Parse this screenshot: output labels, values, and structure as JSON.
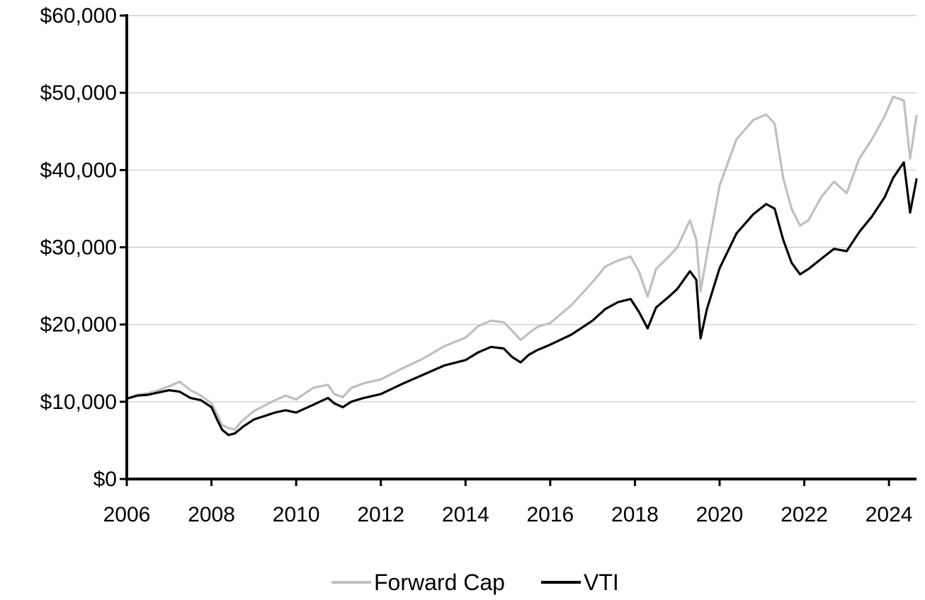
{
  "chart_data": {
    "type": "line",
    "title": "",
    "xlabel": "",
    "ylabel": "",
    "xlim": [
      2006,
      2024.65
    ],
    "ylim": [
      0,
      60000
    ],
    "x_ticks": [
      2006,
      2008,
      2010,
      2012,
      2014,
      2016,
      2018,
      2020,
      2022,
      2024
    ],
    "x_tick_labels": [
      "2006",
      "2008",
      "2010",
      "2012",
      "2014",
      "2016",
      "2018",
      "2020",
      "2022",
      "2024"
    ],
    "y_ticks": [
      0,
      10000,
      20000,
      30000,
      40000,
      50000,
      60000
    ],
    "y_tick_labels": [
      "$0",
      "$10,000",
      "$20,000",
      "$30,000",
      "$40,000",
      "$50,000",
      "$60,000"
    ],
    "grid": "horizontal",
    "legend_position": "bottom-center",
    "series": [
      {
        "name": "Forward Cap",
        "color": "#bfbfbf",
        "points": [
          [
            2006.0,
            10400
          ],
          [
            2006.25,
            10900
          ],
          [
            2006.5,
            11100
          ],
          [
            2006.75,
            11500
          ],
          [
            2007.0,
            12000
          ],
          [
            2007.25,
            12600
          ],
          [
            2007.5,
            11500
          ],
          [
            2007.75,
            10800
          ],
          [
            2008.0,
            9800
          ],
          [
            2008.15,
            8200
          ],
          [
            2008.25,
            7000
          ],
          [
            2008.4,
            6600
          ],
          [
            2008.55,
            6400
          ],
          [
            2008.7,
            7400
          ],
          [
            2009.0,
            8800
          ],
          [
            2009.5,
            10200
          ],
          [
            2009.75,
            10800
          ],
          [
            2010.0,
            10300
          ],
          [
            2010.4,
            11800
          ],
          [
            2010.75,
            12200
          ],
          [
            2010.9,
            11000
          ],
          [
            2011.1,
            10600
          ],
          [
            2011.3,
            11800
          ],
          [
            2011.6,
            12400
          ],
          [
            2012.0,
            12900
          ],
          [
            2012.5,
            14300
          ],
          [
            2013.0,
            15600
          ],
          [
            2013.5,
            17200
          ],
          [
            2014.0,
            18300
          ],
          [
            2014.3,
            19800
          ],
          [
            2014.6,
            20500
          ],
          [
            2014.9,
            20300
          ],
          [
            2015.1,
            19200
          ],
          [
            2015.3,
            18000
          ],
          [
            2015.5,
            18900
          ],
          [
            2015.7,
            19700
          ],
          [
            2016.0,
            20200
          ],
          [
            2016.5,
            22500
          ],
          [
            2017.0,
            25500
          ],
          [
            2017.3,
            27500
          ],
          [
            2017.6,
            28300
          ],
          [
            2017.9,
            28800
          ],
          [
            2018.1,
            26800
          ],
          [
            2018.3,
            23600
          ],
          [
            2018.5,
            27200
          ],
          [
            2018.8,
            28800
          ],
          [
            2019.0,
            30000
          ],
          [
            2019.3,
            33500
          ],
          [
            2019.45,
            31000
          ],
          [
            2019.55,
            24300
          ],
          [
            2019.7,
            29000
          ],
          [
            2020.0,
            38000
          ],
          [
            2020.4,
            44000
          ],
          [
            2020.8,
            46500
          ],
          [
            2021.1,
            47200
          ],
          [
            2021.3,
            46000
          ],
          [
            2021.5,
            39000
          ],
          [
            2021.7,
            35000
          ],
          [
            2021.9,
            32800
          ],
          [
            2022.1,
            33500
          ],
          [
            2022.4,
            36500
          ],
          [
            2022.7,
            38500
          ],
          [
            2023.0,
            37000
          ],
          [
            2023.3,
            41500
          ],
          [
            2023.6,
            44000
          ],
          [
            2023.9,
            47000
          ],
          [
            2024.1,
            49500
          ],
          [
            2024.35,
            49000
          ],
          [
            2024.5,
            41500
          ],
          [
            2024.65,
            47000
          ]
        ]
      },
      {
        "name": "VTI",
        "color": "#000000",
        "points": [
          [
            2006.0,
            10400
          ],
          [
            2006.25,
            10800
          ],
          [
            2006.5,
            10900
          ],
          [
            2006.75,
            11200
          ],
          [
            2007.0,
            11500
          ],
          [
            2007.25,
            11300
          ],
          [
            2007.5,
            10500
          ],
          [
            2007.75,
            10200
          ],
          [
            2008.0,
            9300
          ],
          [
            2008.15,
            7500
          ],
          [
            2008.25,
            6400
          ],
          [
            2008.4,
            5700
          ],
          [
            2008.55,
            5900
          ],
          [
            2008.75,
            6800
          ],
          [
            2009.0,
            7700
          ],
          [
            2009.5,
            8600
          ],
          [
            2009.75,
            8900
          ],
          [
            2010.0,
            8600
          ],
          [
            2010.4,
            9600
          ],
          [
            2010.75,
            10500
          ],
          [
            2010.9,
            9800
          ],
          [
            2011.1,
            9300
          ],
          [
            2011.3,
            10000
          ],
          [
            2011.6,
            10500
          ],
          [
            2012.0,
            11000
          ],
          [
            2012.5,
            12300
          ],
          [
            2013.0,
            13500
          ],
          [
            2013.5,
            14700
          ],
          [
            2014.0,
            15400
          ],
          [
            2014.3,
            16400
          ],
          [
            2014.6,
            17100
          ],
          [
            2014.9,
            16900
          ],
          [
            2015.1,
            15800
          ],
          [
            2015.3,
            15100
          ],
          [
            2015.5,
            16100
          ],
          [
            2015.7,
            16700
          ],
          [
            2016.0,
            17400
          ],
          [
            2016.5,
            18700
          ],
          [
            2017.0,
            20500
          ],
          [
            2017.3,
            22000
          ],
          [
            2017.6,
            22900
          ],
          [
            2017.9,
            23300
          ],
          [
            2018.1,
            21600
          ],
          [
            2018.3,
            19500
          ],
          [
            2018.5,
            22200
          ],
          [
            2018.8,
            23600
          ],
          [
            2019.0,
            24600
          ],
          [
            2019.3,
            26900
          ],
          [
            2019.45,
            25800
          ],
          [
            2019.55,
            18200
          ],
          [
            2019.7,
            22000
          ],
          [
            2020.0,
            27300
          ],
          [
            2020.4,
            31800
          ],
          [
            2020.8,
            34300
          ],
          [
            2021.1,
            35600
          ],
          [
            2021.3,
            35000
          ],
          [
            2021.5,
            31000
          ],
          [
            2021.7,
            28000
          ],
          [
            2021.9,
            26500
          ],
          [
            2022.1,
            27200
          ],
          [
            2022.4,
            28500
          ],
          [
            2022.7,
            29800
          ],
          [
            2023.0,
            29500
          ],
          [
            2023.3,
            32000
          ],
          [
            2023.6,
            34000
          ],
          [
            2023.9,
            36500
          ],
          [
            2024.1,
            39000
          ],
          [
            2024.35,
            41000
          ],
          [
            2024.5,
            34500
          ],
          [
            2024.65,
            38800
          ]
        ]
      }
    ]
  }
}
